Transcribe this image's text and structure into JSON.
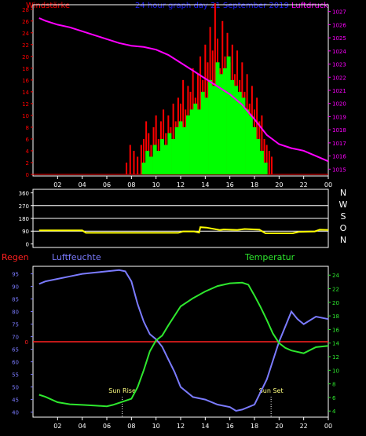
{
  "title": "24 hour graph day  21 September 2019",
  "colors": {
    "background": "#000000",
    "frame": "#ffffff",
    "wind_red": "#ff0000",
    "wind_green": "#00ff00",
    "pressure": "#ff00ff",
    "direction": "#ffff00",
    "humidity": "#7b7bff",
    "temperature": "#2ee82e",
    "rain": "#ff2020",
    "title_blue": "#2020ff",
    "dir_label": "#ffffff"
  },
  "chart_data": [
    {
      "type": "bar",
      "panel": "wind-and-pressure",
      "legend_left": "Windstärke",
      "legend_right": "Luftdruck",
      "x_ticks": [
        "02",
        "04",
        "06",
        "08",
        "10",
        "12",
        "14",
        "16",
        "18",
        "20",
        "22",
        "00"
      ],
      "left_axis": {
        "label": "Windstärke",
        "ticks": [
          0,
          2,
          4,
          6,
          8,
          10,
          12,
          14,
          16,
          18,
          20,
          22,
          24,
          26,
          28
        ],
        "range": [
          0,
          28.5
        ]
      },
      "right_axis": {
        "label": "Luftdruck",
        "ticks": [
          1015,
          1016,
          1017,
          1018,
          1019,
          1020,
          1021,
          1022,
          1023,
          1024,
          1025,
          1026,
          1027
        ],
        "range": [
          1014.6,
          1027.4
        ]
      },
      "series": [
        {
          "name": "gust",
          "style": "bars",
          "color": "red",
          "x": [
            7.6,
            7.9,
            8.2,
            8.5,
            8.8,
            9.0,
            9.2,
            9.4,
            9.6,
            9.8,
            10.0,
            10.2,
            10.4,
            10.6,
            10.8,
            11.0,
            11.2,
            11.4,
            11.6,
            11.8,
            12.0,
            12.2,
            12.4,
            12.6,
            12.8,
            13.0,
            13.2,
            13.4,
            13.6,
            13.8,
            14.0,
            14.2,
            14.4,
            14.6,
            14.8,
            15.0,
            15.2,
            15.4,
            15.6,
            15.8,
            16.0,
            16.2,
            16.4,
            16.6,
            16.8,
            17.0,
            17.2,
            17.4,
            17.6,
            17.8,
            18.0,
            18.2,
            18.4,
            18.6,
            18.8,
            19.0,
            19.2,
            19.4
          ],
          "y": [
            2,
            5,
            4,
            3,
            5,
            6,
            9,
            7,
            5,
            8,
            10,
            6,
            9,
            11,
            7,
            10,
            8,
            12,
            9,
            13,
            12,
            16,
            11,
            15,
            14,
            18,
            13,
            17,
            20,
            16,
            22,
            19,
            25,
            21,
            29,
            23,
            18,
            26,
            20,
            24,
            19,
            22,
            17,
            21,
            16,
            19,
            14,
            17,
            12,
            15,
            11,
            13,
            9,
            10,
            6,
            5,
            4,
            3
          ]
        },
        {
          "name": "average",
          "style": "bars",
          "color": "green",
          "x": [
            9.0,
            9.3,
            9.6,
            9.9,
            10.2,
            10.5,
            10.8,
            11.1,
            11.4,
            11.7,
            12.0,
            12.3,
            12.6,
            12.9,
            13.2,
            13.5,
            13.8,
            14.1,
            14.4,
            14.7,
            15.0,
            15.3,
            15.6,
            15.9,
            16.2,
            16.5,
            16.8,
            17.1,
            17.4,
            17.7,
            18.0,
            18.3,
            18.6,
            18.9
          ],
          "y": [
            2,
            4,
            3,
            5,
            4,
            6,
            5,
            7,
            6,
            8,
            9,
            8,
            10,
            11,
            12,
            11,
            14,
            13,
            16,
            15,
            19,
            17,
            18,
            20,
            16,
            15,
            14,
            13,
            11,
            10,
            8,
            6,
            4,
            2
          ]
        },
        {
          "name": "pressure",
          "style": "line",
          "color": "magenta",
          "axis": "right",
          "x": [
            0.5,
            1,
            2,
            3,
            4,
            5,
            6,
            7,
            8,
            9,
            10,
            11,
            12,
            13,
            14,
            15,
            16,
            17,
            18,
            19,
            20,
            21,
            22,
            23,
            24
          ],
          "y": [
            1026.5,
            1026.3,
            1026.0,
            1025.8,
            1025.5,
            1025.2,
            1024.9,
            1024.6,
            1024.4,
            1024.3,
            1024.1,
            1023.7,
            1023.1,
            1022.5,
            1021.9,
            1021.3,
            1020.7,
            1019.9,
            1018.8,
            1017.6,
            1016.9,
            1016.6,
            1016.4,
            1016.0,
            1015.6
          ]
        }
      ]
    },
    {
      "type": "line",
      "panel": "wind-direction",
      "x_ticks": [
        "02",
        "04",
        "06",
        "08",
        "10",
        "12",
        "14",
        "16",
        "18",
        "20",
        "22",
        "00"
      ],
      "left_axis": {
        "ticks": [
          0,
          90,
          180,
          270,
          360
        ],
        "range": [
          -25,
          385
        ]
      },
      "right_labels": [
        "N",
        "W",
        "S",
        "O",
        "N"
      ],
      "series": [
        {
          "name": "direction",
          "color": "yellow",
          "x": [
            0.5,
            4.0,
            4.3,
            11.8,
            12.2,
            13.1,
            13.5,
            13.6,
            14.1,
            15.2,
            15.5,
            16.6,
            17.2,
            18.4,
            18.9,
            21.1,
            21.6,
            22.9,
            23.3,
            24
          ],
          "y": [
            95,
            95,
            78,
            78,
            88,
            88,
            80,
            118,
            115,
            98,
            102,
            98,
            105,
            100,
            75,
            75,
            85,
            88,
            100,
            98
          ]
        }
      ]
    },
    {
      "type": "line",
      "panel": "humidity-temperature",
      "legend_rain": "Regen",
      "legend_humidity": "Luftfeuchte",
      "legend_temperature": "Temperatur",
      "x_ticks": [
        "02",
        "04",
        "06",
        "08",
        "10",
        "12",
        "14",
        "16",
        "18",
        "20",
        "22",
        "00"
      ],
      "left_axis": {
        "label": "Luftfeuchte",
        "ticks": [
          40,
          45,
          50,
          55,
          60,
          65,
          70,
          75,
          80,
          85,
          90,
          95
        ],
        "range": [
          38,
          98
        ]
      },
      "rain_axis": {
        "label": "Regen",
        "ticks": [
          0
        ]
      },
      "right_axis": {
        "label": "Temperatur",
        "ticks": [
          4,
          6,
          8,
          10,
          12,
          14,
          16,
          18,
          20,
          22,
          24
        ],
        "range": [
          3.1,
          25.3
        ]
      },
      "annotations": [
        {
          "label": "Sun Rise",
          "x": 7.25
        },
        {
          "label": "Sun Set",
          "x": 19.35
        }
      ],
      "series": [
        {
          "name": "humidity",
          "color": "blue",
          "x": [
            0.5,
            1,
            2,
            3,
            4,
            5,
            6,
            7,
            7.5,
            8,
            8.5,
            9,
            9.5,
            10,
            10.5,
            11,
            11.5,
            12,
            13,
            14,
            15,
            16,
            16.5,
            17,
            18,
            19,
            20,
            20.5,
            21,
            21.5,
            22,
            23,
            24
          ],
          "y": [
            91,
            92,
            93,
            94,
            95,
            95.5,
            96,
            96.5,
            96,
            92,
            83,
            76,
            71,
            69,
            66,
            61,
            56,
            50,
            46,
            45,
            43,
            42,
            40.5,
            41,
            43,
            53,
            68,
            74,
            80,
            77,
            75,
            78,
            77
          ]
        },
        {
          "name": "temperature",
          "color": "green",
          "x": [
            0.5,
            1,
            2,
            3,
            4,
            5,
            6,
            6.5,
            7,
            7.5,
            8,
            8.5,
            9,
            9.5,
            10,
            10.5,
            11,
            12,
            13,
            14,
            15,
            16,
            17,
            17.5,
            18,
            18.5,
            19,
            19.5,
            20,
            20.5,
            21,
            22,
            23,
            24
          ],
          "y": [
            6.4,
            6.1,
            5.3,
            5.0,
            4.9,
            4.8,
            4.7,
            4.9,
            5.2,
            5.5,
            5.8,
            7.5,
            10.0,
            12.8,
            14.4,
            15.1,
            16.6,
            19.4,
            20.6,
            21.6,
            22.4,
            22.8,
            22.9,
            22.6,
            21.0,
            19.3,
            17.4,
            15.4,
            14.0,
            13.3,
            12.9,
            12.5,
            13.4,
            13.6
          ]
        }
      ]
    }
  ]
}
